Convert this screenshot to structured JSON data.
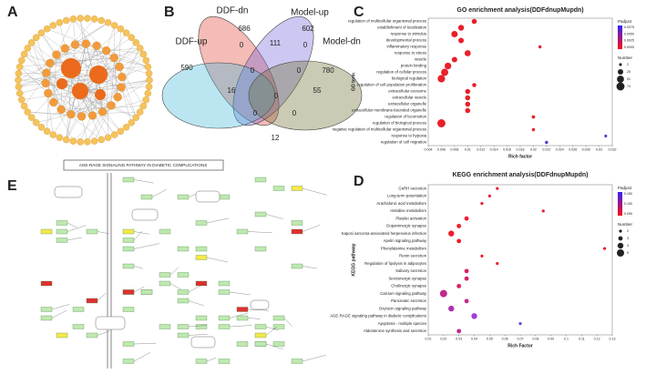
{
  "panels": [
    "A",
    "B",
    "C",
    "D",
    "E"
  ],
  "pathway": {
    "title": "AGE-RAGE SIGNALING PATHWAY IN DIABETIC COMPLICATIONS"
  },
  "chart_data": [
    {
      "type": "venn",
      "sets": [
        {
          "name": "DDF-dn",
          "color": "#e03c31"
        },
        {
          "name": "Model-up",
          "color": "#7062d8"
        },
        {
          "name": "DDF-up",
          "color": "#3cb6d6"
        },
        {
          "name": "Model-dn",
          "color": "#6b6b2a"
        }
      ],
      "values": [
        686,
        111,
        602,
        590,
        0,
        0,
        780,
        16,
        0,
        0,
        0,
        55,
        0,
        0,
        12
      ]
    },
    {
      "type": "dot",
      "title": "GO enrichment analysis(DDFdnupMupdn)",
      "ylabel": "GO term",
      "xlabel": "Rich factor",
      "categories": [
        "regulation of multicellular organismal process",
        "establishment of localization",
        "response to stimulus",
        "developmental process",
        "inflammatory response",
        "response to stress",
        "vesicle",
        "protein binding",
        "regulation of cellular process",
        "biological regulation",
        "regulation of cell population proliferation",
        "extracellular exosome",
        "extracellular vesicle",
        "extracellular organelle",
        "extracellular membrane-bounded organelle",
        "regulation of locomotion",
        "regulation of biological process",
        "negative regulation of multicellular organismal process",
        "response to hypoxia",
        "regulation of cell migration"
      ],
      "values": [
        0.011,
        0.009,
        0.008,
        0.009,
        0.021,
        0.01,
        0.008,
        0.007,
        0.0065,
        0.006,
        0.011,
        0.01,
        0.01,
        0.01,
        0.01,
        0.02,
        0.006,
        0.02,
        0.031,
        0.022
      ],
      "sizes": [
        20,
        30,
        40,
        25,
        3,
        35,
        25,
        45,
        55,
        60,
        10,
        20,
        20,
        20,
        20,
        5,
        74,
        3,
        2,
        3
      ],
      "colors": [
        "#e8202a",
        "#e8202a",
        "#e8202a",
        "#e8202a",
        "#e8202a",
        "#e8202a",
        "#e8202a",
        "#e8202a",
        "#e8202a",
        "#e8202a",
        "#e8202a",
        "#e8202a",
        "#e8202a",
        "#e8202a",
        "#e8202a",
        "#e8202a",
        "#e8202a",
        "#e8202a",
        "#5a3bd6",
        "#4a3bd6"
      ],
      "xlim": [
        0.004,
        0.032
      ],
      "xticks": [
        0.004,
        0.006,
        0.008,
        0.01,
        0.012,
        0.014,
        0.016,
        0.018,
        0.02,
        0.022,
        0.024,
        0.026,
        0.028,
        0.03,
        0.032
      ],
      "color_legend": {
        "title": "Padjust",
        "gradient": [
          "#3322ff",
          "#ff1010"
        ],
        "ticks": [
          0.0075,
          {
            "value": 0.005,
            "label": "0.0050"
          },
          0.0025,
          {
            "value": 0,
            "label": "0.0000"
          }
        ]
      },
      "size_legend": {
        "title": "Number",
        "ticks": [
          2,
          25,
          51,
          74
        ]
      }
    },
    {
      "type": "dot",
      "title": "KEGG enrichment analysis(DDFdnupMupdn)",
      "ylabel": "KEGG pathway",
      "xlabel": "Rich Factor",
      "categories": [
        "GnRH secretion",
        "Long-term potentiation",
        "Arachidonic acid metabolism",
        "Histidine metabolism",
        "Platelet activation",
        "Dopaminergic synapse",
        "Kaposi sarcoma-associated herpesvirus infection",
        "Apelin signaling pathway",
        "Phenylalanine metabolism",
        "Renin secretion",
        "Regulation of lipolysis in adipocytes",
        "Salivary secretion",
        "Serotonergic synapse",
        "Cholinergic synapse",
        "Calcium signaling pathway",
        "Pancreatic secretion",
        "Oxytocin signaling pathway",
        "AGE-RAGE signaling pathway in diabetic complications",
        "Apoptosis - multiple species",
        "Aldosterone synthesis and secretion"
      ],
      "values": [
        0.055,
        0.05,
        0.045,
        0.085,
        0.035,
        0.03,
        0.025,
        0.03,
        0.125,
        0.045,
        0.055,
        0.035,
        0.035,
        0.03,
        0.02,
        0.035,
        0.025,
        0.04,
        0.07,
        0.03
      ],
      "sizes": [
        2,
        2,
        2,
        2,
        3,
        3,
        4,
        3,
        2,
        2,
        2,
        3,
        3,
        3,
        5,
        3,
        4,
        4,
        2,
        3
      ],
      "colors": [
        "#ee1b2e",
        "#ee1b2e",
        "#ee1b2e",
        "#ee1b2e",
        "#ee1b2e",
        "#ee1b2e",
        "#ee1b2e",
        "#ee1b2e",
        "#ee1b2e",
        "#ee1b2e",
        "#ee1b2e",
        "#d8206a",
        "#d8206a",
        "#d8206a",
        "#c02a90",
        "#c02a90",
        "#b030b0",
        "#a040d0",
        "#5050e0",
        "#c02a90"
      ],
      "xlim": [
        0.01,
        0.13
      ],
      "xticks": [
        0.01,
        0.02,
        0.03,
        0.04,
        0.05,
        0.06,
        0.07,
        0.08,
        0.09,
        0.1,
        0.11,
        0.12,
        0.13
      ],
      "color_legend": {
        "title": "Padjust",
        "gradient": [
          "#3322ff",
          "#ff1010"
        ],
        "ticks": [
          {
            "value": 0.15,
            "label": "0.150"
          },
          {
            "value": 0.1,
            "label": "0.100"
          },
          {
            "value": 0.05,
            "label": "0.050"
          }
        ]
      },
      "size_legend": {
        "title": "Number",
        "ticks": [
          2,
          3,
          4,
          5
        ]
      }
    }
  ]
}
